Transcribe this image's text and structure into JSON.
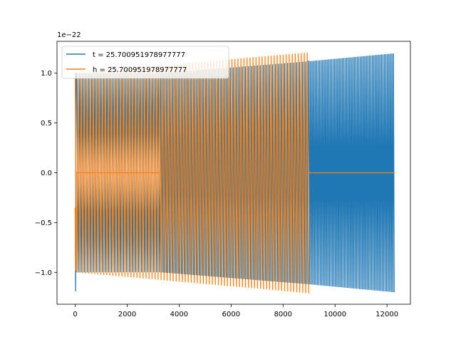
{
  "chart_data": {
    "type": "line",
    "title": "",
    "xlabel": "",
    "ylabel": "",
    "y_offset_label": "1e−22",
    "xlim": [
      -700,
      12900
    ],
    "ylim": [
      -1.32,
      1.32
    ],
    "x_ticks": [
      0,
      2000,
      4000,
      6000,
      8000,
      10000,
      12000
    ],
    "x_tick_labels": [
      "0",
      "2000",
      "4000",
      "6000",
      "8000",
      "10000",
      "12000"
    ],
    "y_ticks": [
      -1.0,
      -0.5,
      0.0,
      0.5,
      1.0
    ],
    "y_tick_labels": [
      "−1.0",
      "−0.5",
      "0.0",
      "0.5",
      "1.0"
    ],
    "grid": false,
    "legend_position": "upper-left",
    "series": [
      {
        "name": "t = 25.700951978977777",
        "color": "#1f77b4",
        "description_points": [
          {
            "x": 0,
            "y": -1.19
          },
          {
            "x": 30,
            "y": 1.0
          },
          {
            "x": 3300,
            "y": 1.04
          },
          {
            "x": 9000,
            "y": 1.12
          },
          {
            "x": 12300,
            "y": 1.2
          }
        ],
        "segments": [
          {
            "x_start": 60,
            "x_end": 3300,
            "amp_start": 1.0,
            "amp_end": 1.0,
            "period": 116
          },
          {
            "x_start": 3300,
            "x_end": 9000,
            "amp_start": 1.0,
            "amp_end": 1.12,
            "period": 58
          },
          {
            "x_start": 9000,
            "x_end": 12300,
            "amp_start": 1.12,
            "amp_end": 1.2,
            "period": 58
          }
        ]
      },
      {
        "name": "h = 25.700951978977777",
        "color": "#ff7f0e",
        "segments": [
          {
            "x_start": 0,
            "x_end": 60,
            "amp_start": 1.0,
            "amp_end": 1.0,
            "period": 60
          },
          {
            "x_start": 60,
            "x_end": 3300,
            "amp_start": 0.0,
            "amp_end": 0.0,
            "period": 116
          },
          {
            "x_start": 3300,
            "x_end": 9000,
            "amp_start": 1.0,
            "amp_end": 1.2,
            "period": 116
          },
          {
            "x_start": 9000,
            "x_end": 12300,
            "amp_start": 0.0,
            "amp_end": 0.0,
            "period": 116
          }
        ],
        "overlay": {
          "x_start": 0,
          "x_end": 9000,
          "amp_start": 1.0,
          "amp_end": 1.21,
          "period": 116
        }
      }
    ]
  }
}
